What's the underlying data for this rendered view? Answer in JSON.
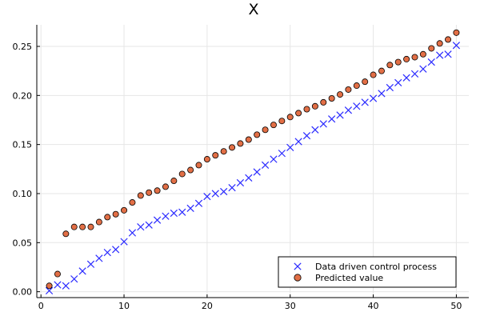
{
  "colors": {
    "series_1": "#2a2aff",
    "series_2": "#e26f46",
    "marker_edge": "#000000",
    "grid": "#e6e6e6"
  },
  "chart_data": {
    "type": "scatter",
    "title": "X",
    "xlabel": "",
    "ylabel": "",
    "xlim": [
      -0.5,
      51.5
    ],
    "ylim": [
      -0.006,
      0.272
    ],
    "xticks": [
      0,
      10,
      20,
      30,
      40,
      50
    ],
    "xtick_labels": [
      "0",
      "10",
      "20",
      "30",
      "40",
      "50"
    ],
    "yticks": [
      0.0,
      0.05,
      0.1,
      0.15,
      0.2,
      0.25
    ],
    "ytick_labels": [
      "0.00",
      "0.05",
      "0.10",
      "0.15",
      "0.20",
      "0.25"
    ],
    "grid": true,
    "legend_position": "bottom-right",
    "x": [
      1,
      2,
      3,
      4,
      5,
      6,
      7,
      8,
      9,
      10,
      11,
      12,
      13,
      14,
      15,
      16,
      17,
      18,
      19,
      20,
      21,
      22,
      23,
      24,
      25,
      26,
      27,
      28,
      29,
      30,
      31,
      32,
      33,
      34,
      35,
      36,
      37,
      38,
      39,
      40,
      41,
      42,
      43,
      44,
      45,
      46,
      47,
      48,
      49,
      50
    ],
    "series": [
      {
        "name": "Data driven control process",
        "marker": "x",
        "values": [
          0.001,
          0.007,
          0.006,
          0.013,
          0.021,
          0.028,
          0.034,
          0.04,
          0.043,
          0.051,
          0.06,
          0.066,
          0.068,
          0.073,
          0.077,
          0.08,
          0.081,
          0.085,
          0.09,
          0.097,
          0.1,
          0.102,
          0.106,
          0.111,
          0.116,
          0.122,
          0.129,
          0.135,
          0.141,
          0.147,
          0.153,
          0.159,
          0.165,
          0.171,
          0.176,
          0.18,
          0.185,
          0.189,
          0.193,
          0.197,
          0.202,
          0.208,
          0.213,
          0.218,
          0.222,
          0.227,
          0.234,
          0.241,
          0.242,
          0.251
        ]
      },
      {
        "name": "Predicted value",
        "marker": "circle",
        "values": [
          0.006,
          0.018,
          0.059,
          0.066,
          0.066,
          0.066,
          0.071,
          0.076,
          0.079,
          0.083,
          0.091,
          0.098,
          0.101,
          0.103,
          0.107,
          0.113,
          0.12,
          0.124,
          0.129,
          0.135,
          0.139,
          0.143,
          0.147,
          0.151,
          0.155,
          0.16,
          0.165,
          0.17,
          0.174,
          0.178,
          0.182,
          0.186,
          0.189,
          0.193,
          0.197,
          0.201,
          0.206,
          0.21,
          0.214,
          0.221,
          0.225,
          0.231,
          0.234,
          0.237,
          0.239,
          0.242,
          0.248,
          0.253,
          0.257,
          0.264
        ]
      }
    ]
  }
}
